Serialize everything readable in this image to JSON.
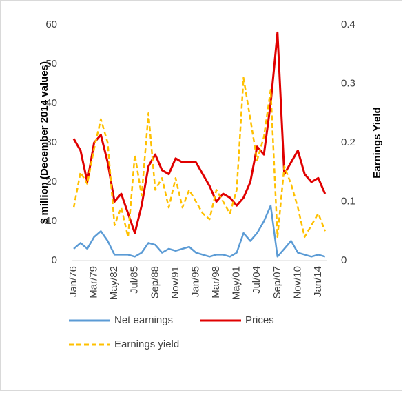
{
  "chart_data": {
    "type": "line",
    "y_label": "$ million (December 2014 values)",
    "y2_label": "Earnings Yield",
    "categories": [
      "Jan/76",
      null,
      null,
      "Mar/79",
      null,
      null,
      "May/82",
      null,
      null,
      "Jul/85",
      null,
      null,
      "Sep/88",
      null,
      null,
      "Nov/91",
      null,
      null,
      "Jan/95",
      null,
      null,
      "Mar/98",
      null,
      null,
      "May/01",
      null,
      null,
      "Jul/04",
      null,
      null,
      "Sep/07",
      null,
      null,
      "Nov/10",
      null,
      null,
      "Jan/14",
      null
    ],
    "series": [
      {
        "name": "Net earnings",
        "color": "#5b9bd5",
        "style": "solid",
        "values": [
          3,
          4.5,
          3,
          6,
          7.5,
          5,
          1.5,
          1.5,
          1.5,
          1,
          2,
          4.5,
          4,
          2,
          3,
          2.5,
          3,
          3.5,
          2,
          1.5,
          1,
          1.5,
          1.5,
          1,
          2,
          7,
          5,
          7,
          10,
          14,
          1,
          3,
          5,
          2,
          1.5,
          1,
          1.5,
          1
        ]
      },
      {
        "name": "Prices",
        "color": "#e00000",
        "style": "solid",
        "values": [
          31,
          28,
          20,
          30,
          32,
          25,
          15,
          17,
          12,
          7,
          14,
          24,
          27,
          23,
          22,
          26,
          25,
          25,
          25,
          22,
          19,
          15,
          17,
          16,
          14,
          16,
          20,
          29,
          27,
          40,
          58,
          22,
          25,
          28,
          22,
          20,
          21,
          17
        ]
      },
      {
        "name": "Earnings yield",
        "color": "#ffc000",
        "style": "dashed",
        "axis": "y2",
        "values": [
          0.09,
          0.15,
          0.13,
          0.19,
          0.24,
          0.2,
          0.06,
          0.09,
          0.04,
          0.18,
          0.11,
          0.25,
          0.12,
          0.14,
          0.09,
          0.14,
          0.09,
          0.12,
          0.1,
          0.08,
          0.07,
          0.12,
          0.1,
          0.08,
          0.12,
          0.31,
          0.24,
          0.17,
          0.21,
          0.29,
          0.04,
          0.16,
          0.13,
          0.09,
          0.04,
          0.06,
          0.08,
          0.05
        ]
      }
    ],
    "ylim": [
      0,
      60
    ],
    "yticks": [
      0,
      10,
      20,
      30,
      40,
      50,
      60
    ],
    "y2lim": [
      0,
      0.4
    ],
    "y2ticks": [
      0,
      0.1,
      0.2,
      0.3,
      0.4
    ],
    "grid": false,
    "legend": "bottom"
  }
}
